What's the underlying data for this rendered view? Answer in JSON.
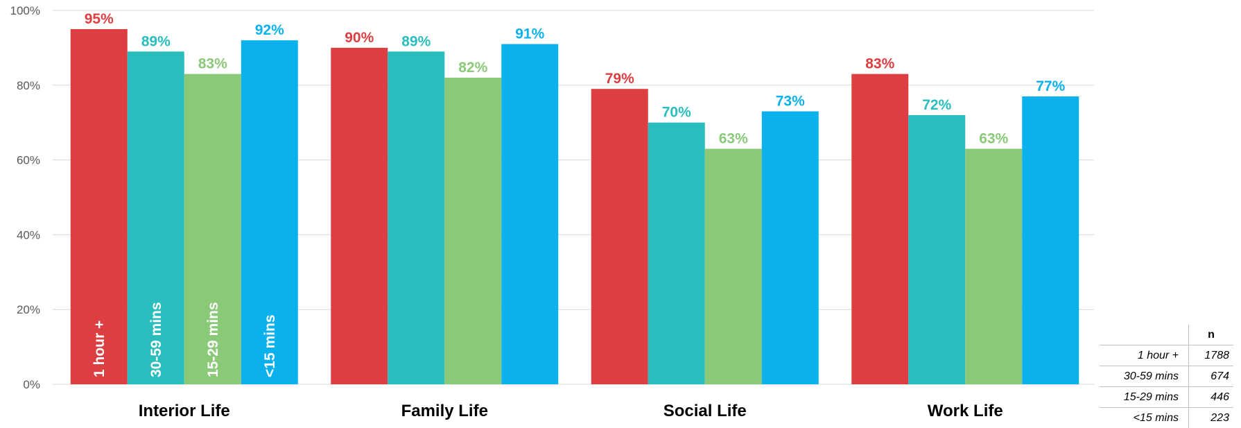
{
  "chart_data": {
    "type": "bar",
    "categories": [
      "Interior Life",
      "Family Life",
      "Social Life",
      "Work Life"
    ],
    "series": [
      {
        "name": "1 hour +",
        "values": [
          95,
          90,
          79,
          83
        ],
        "color": "#DC3E41"
      },
      {
        "name": "30-59 mins",
        "values": [
          89,
          89,
          70,
          72
        ],
        "color": "#2ABDBD"
      },
      {
        "name": "15-29 mins",
        "values": [
          83,
          82,
          63,
          63
        ],
        "color": "#89C978"
      },
      {
        "name": "<15 mins",
        "values": [
          92,
          91,
          73,
          77
        ],
        "color": "#0AB1EC"
      }
    ],
    "data_labels": [
      [
        "95%",
        "90%",
        "79%",
        "83%"
      ],
      [
        "89%",
        "89%",
        "70%",
        "72%"
      ],
      [
        "83%",
        "82%",
        "63%",
        "63%"
      ],
      [
        "92%",
        "91%",
        "73%",
        "77%"
      ]
    ],
    "yticks": [
      "0%",
      "20%",
      "40%",
      "60%",
      "80%",
      "100%"
    ],
    "ylim": [
      0,
      100
    ],
    "grid": true,
    "title": "",
    "xlabel": "",
    "ylabel": ""
  },
  "n_table": {
    "header": "n",
    "rows": [
      {
        "label": "1 hour +",
        "n": "1788"
      },
      {
        "label": "30-59 mins",
        "n": "674"
      },
      {
        "label": "15-29 mins",
        "n": "446"
      },
      {
        "label": "<15 mins",
        "n": "223"
      }
    ]
  }
}
